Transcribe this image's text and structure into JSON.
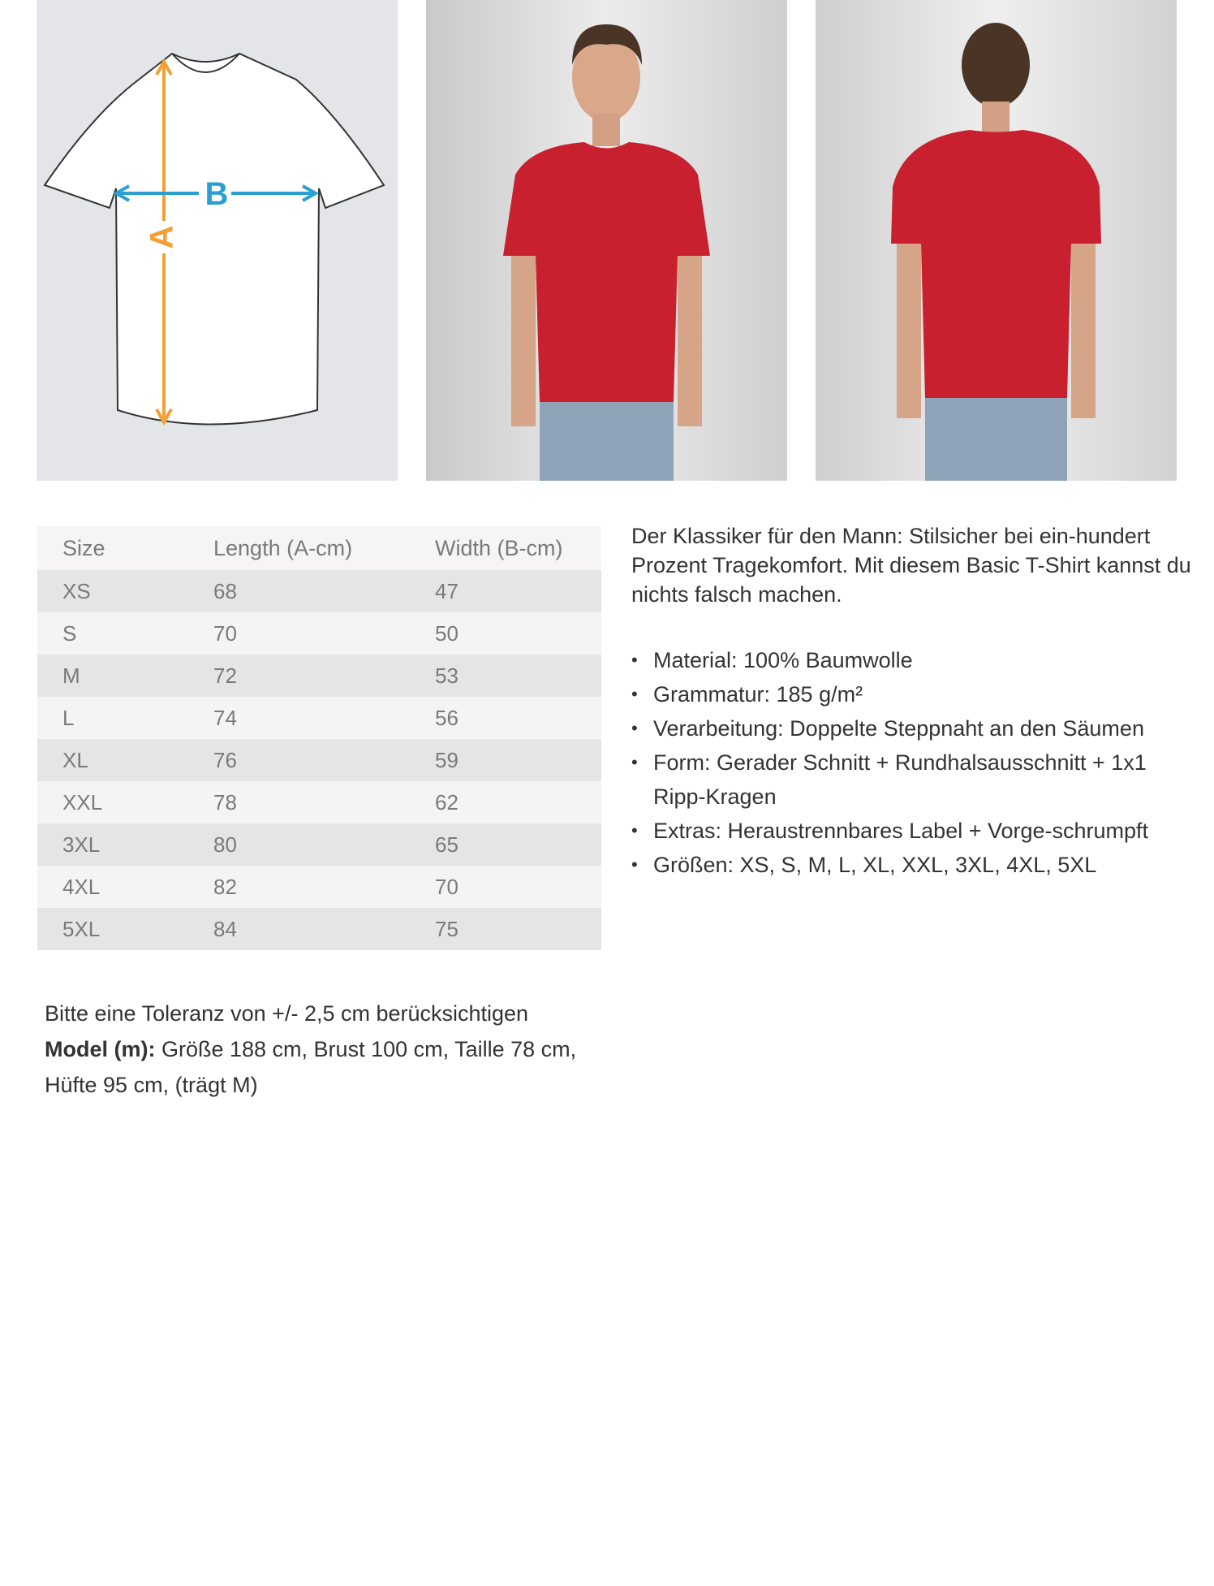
{
  "diagram": {
    "label_a": "A",
    "label_b": "B",
    "color_a": "#f0a035",
    "color_b": "#2a9fd0"
  },
  "photos": {
    "shirt_color": "#c8202e",
    "front_alt": "model-front",
    "back_alt": "model-back"
  },
  "size_table": {
    "headers": [
      "Size",
      "Length (A-cm)",
      "Width (B-cm)"
    ],
    "rows": [
      [
        "XS",
        "68",
        "47"
      ],
      [
        "S",
        "70",
        "50"
      ],
      [
        "M",
        "72",
        "53"
      ],
      [
        "L",
        "74",
        "56"
      ],
      [
        "XL",
        "76",
        "59"
      ],
      [
        "XXL",
        "78",
        "62"
      ],
      [
        "3XL",
        "80",
        "65"
      ],
      [
        "4XL",
        "82",
        "70"
      ],
      [
        "5XL",
        "84",
        "75"
      ]
    ]
  },
  "description": "Der Klassiker für den Mann: Stilsicher bei ein-hundert Prozent Tragekomfort. Mit diesem Basic T-Shirt kannst du nichts falsch machen.",
  "features": [
    "Material: 100% Baumwolle",
    "Grammatur: 185 g/m²",
    "Verarbeitung: Doppelte Steppnaht an den Säumen",
    "Form: Gerader Schnitt + Rundhalsausschnitt + 1x1 Ripp-Kragen",
    "Extras: Heraustrennbares Label + Vorge-schrumpft",
    "Größen: XS, S, M, L, XL, XXL, 3XL, 4XL, 5XL"
  ],
  "note": {
    "tolerance": "Bitte eine Toleranz von +/- 2,5 cm berücksichtigen",
    "model_label": "Model (m):",
    "model_text": " Größe 188 cm, Brust 100 cm, Taille 78 cm, Hüfte 95 cm, (trägt M)"
  }
}
